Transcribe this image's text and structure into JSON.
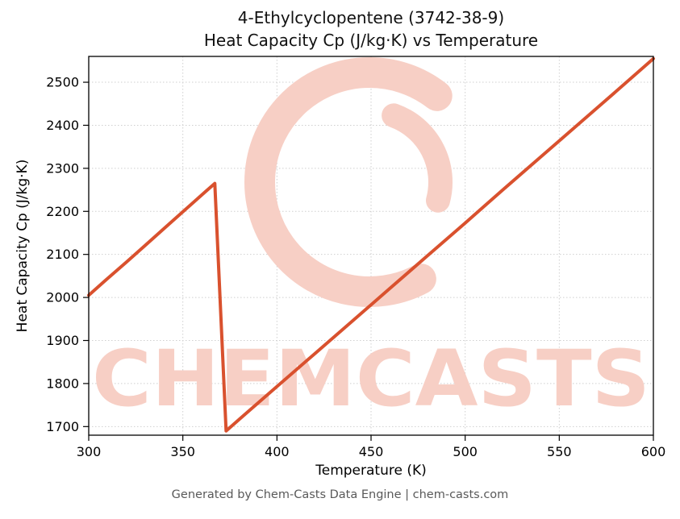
{
  "header": {
    "title_line1": "4-Ethylcyclopentene (3742-38-9)",
    "title_line2": "Heat Capacity Cp (J/kg·K) vs Temperature"
  },
  "watermark": {
    "text": "CHEMCASTS",
    "color": "#f7cfc5"
  },
  "footer": {
    "text": "Generated by Chem-Casts Data Engine | chem-casts.com"
  },
  "chart_data": {
    "type": "line",
    "title": "4-Ethylcyclopentene (3742-38-9) Heat Capacity Cp (J/kg·K) vs Temperature",
    "xlabel": "Temperature (K)",
    "ylabel": "Heat Capacity Cp (J/kg·K)",
    "xlim": [
      300,
      600
    ],
    "ylim": [
      1680,
      2560
    ],
    "x_ticks": [
      300,
      350,
      400,
      450,
      500,
      550,
      600
    ],
    "y_ticks": [
      1700,
      1800,
      1900,
      2000,
      2100,
      2200,
      2300,
      2400,
      2500
    ],
    "grid": true,
    "grid_style": "dotted",
    "legend": "none",
    "line_color": "#d9512e",
    "series": [
      {
        "name": "Heat Capacity Cp",
        "points": [
          [
            300,
            2005
          ],
          [
            310,
            2044
          ],
          [
            320,
            2082
          ],
          [
            330,
            2121
          ],
          [
            340,
            2160
          ],
          [
            350,
            2199
          ],
          [
            360,
            2238
          ],
          [
            367,
            2265
          ],
          [
            373,
            1690
          ],
          [
            380,
            1717
          ],
          [
            400,
            1793
          ],
          [
            420,
            1869
          ],
          [
            440,
            1945
          ],
          [
            450,
            1983
          ],
          [
            460,
            2021
          ],
          [
            480,
            2097
          ],
          [
            500,
            2173
          ],
          [
            520,
            2250
          ],
          [
            540,
            2326
          ],
          [
            550,
            2364
          ],
          [
            560,
            2402
          ],
          [
            580,
            2478
          ],
          [
            600,
            2555
          ]
        ]
      }
    ]
  }
}
